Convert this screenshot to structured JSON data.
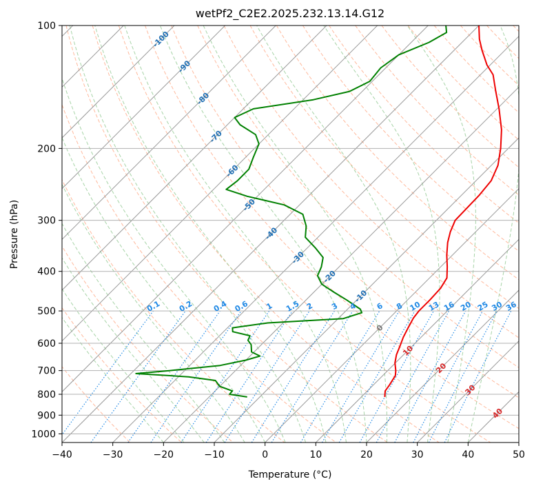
{
  "chart_data": {
    "type": "skew-t",
    "title": "wetPf2_C2E2.2025.232.13.14.G12",
    "xlabel": "Temperature (°C)",
    "ylabel": "Pressure (hPa)",
    "xlim": [
      -40,
      50
    ],
    "ylim": [
      1050,
      100
    ],
    "y_scale": "log",
    "grid": true,
    "x_ticks": [
      -40,
      -30,
      -20,
      -10,
      0,
      10,
      20,
      30,
      40,
      50
    ],
    "y_ticks": [
      100,
      200,
      300,
      400,
      500,
      600,
      700,
      800,
      900,
      1000
    ],
    "colors": {
      "temperature": "#ee0000",
      "dewpoint": "#008000",
      "isotherm": "#999999",
      "dry_adiabat": "#ffa07a",
      "moist_adiabat": "#90c890",
      "mixing_ratio": "#1e88e5",
      "isotherm_label": "#1f6fb4",
      "warm_label": "#d62728"
    },
    "series": [
      {
        "name": "Temperature",
        "points": [
          {
            "p": 812,
            "t": 14.6
          },
          {
            "p": 785,
            "t": 13.5
          },
          {
            "p": 760,
            "t": 13.2
          },
          {
            "p": 720,
            "t": 12.5
          },
          {
            "p": 700,
            "t": 11.6
          },
          {
            "p": 670,
            "t": 9.9
          },
          {
            "p": 640,
            "t": 8.6
          },
          {
            "p": 610,
            "t": 7.6
          },
          {
            "p": 580,
            "t": 6.5
          },
          {
            "p": 550,
            "t": 5.6
          },
          {
            "p": 520,
            "t": 4.7
          },
          {
            "p": 500,
            "t": 4.4
          },
          {
            "p": 470,
            "t": 4.4
          },
          {
            "p": 440,
            "t": 4.2
          },
          {
            "p": 415,
            "t": 3.4
          },
          {
            "p": 390,
            "t": 1.3
          },
          {
            "p": 365,
            "t": -1.1
          },
          {
            "p": 340,
            "t": -3.4
          },
          {
            "p": 320,
            "t": -5.0
          },
          {
            "p": 300,
            "t": -6.3
          },
          {
            "p": 280,
            "t": -6.4
          },
          {
            "p": 260,
            "t": -6.5
          },
          {
            "p": 240,
            "t": -7.0
          },
          {
            "p": 220,
            "t": -8.7
          },
          {
            "p": 200,
            "t": -11.5
          },
          {
            "p": 180,
            "t": -15.0
          },
          {
            "p": 160,
            "t": -19.6
          },
          {
            "p": 145,
            "t": -23.7
          },
          {
            "p": 132,
            "t": -27.5
          },
          {
            "p": 125,
            "t": -30.6
          },
          {
            "p": 115,
            "t": -34.5
          },
          {
            "p": 108,
            "t": -37.2
          },
          {
            "p": 100,
            "t": -40.0
          }
        ]
      },
      {
        "name": "Dewpoint",
        "points": [
          {
            "p": 812,
            "t": -12.5
          },
          {
            "p": 800,
            "t": -16.5
          },
          {
            "p": 785,
            "t": -16.6
          },
          {
            "p": 765,
            "t": -20.0
          },
          {
            "p": 740,
            "t": -22.0
          },
          {
            "p": 725,
            "t": -28.0
          },
          {
            "p": 712,
            "t": -39.0
          },
          {
            "p": 700,
            "t": -33.0
          },
          {
            "p": 680,
            "t": -24.0
          },
          {
            "p": 660,
            "t": -20.0
          },
          {
            "p": 645,
            "t": -18.0
          },
          {
            "p": 630,
            "t": -20.5
          },
          {
            "p": 605,
            "t": -22.0
          },
          {
            "p": 590,
            "t": -23.5
          },
          {
            "p": 575,
            "t": -24.0
          },
          {
            "p": 562,
            "t": -28.2
          },
          {
            "p": 550,
            "t": -29.0
          },
          {
            "p": 535,
            "t": -23.0
          },
          {
            "p": 522,
            "t": -9.0
          },
          {
            "p": 505,
            "t": -6.5
          },
          {
            "p": 495,
            "t": -7.5
          },
          {
            "p": 470,
            "t": -12.0
          },
          {
            "p": 450,
            "t": -16.0
          },
          {
            "p": 430,
            "t": -20.0
          },
          {
            "p": 410,
            "t": -22.5
          },
          {
            "p": 390,
            "t": -23.5
          },
          {
            "p": 370,
            "t": -25.0
          },
          {
            "p": 350,
            "t": -28.5
          },
          {
            "p": 330,
            "t": -32.5
          },
          {
            "p": 310,
            "t": -34.5
          },
          {
            "p": 290,
            "t": -37.5
          },
          {
            "p": 275,
            "t": -43.0
          },
          {
            "p": 262,
            "t": -52.0
          },
          {
            "p": 252,
            "t": -57.5
          },
          {
            "p": 240,
            "t": -57.0
          },
          {
            "p": 225,
            "t": -57.0
          },
          {
            "p": 210,
            "t": -58.5
          },
          {
            "p": 195,
            "t": -60.0
          },
          {
            "p": 185,
            "t": -62.5
          },
          {
            "p": 175,
            "t": -67.5
          },
          {
            "p": 168,
            "t": -70.0
          },
          {
            "p": 160,
            "t": -68.0
          },
          {
            "p": 152,
            "t": -58.0
          },
          {
            "p": 145,
            "t": -52.5
          },
          {
            "p": 137,
            "t": -50.5
          },
          {
            "p": 127,
            "t": -51.0
          },
          {
            "p": 118,
            "t": -50.0
          },
          {
            "p": 110,
            "t": -46.5
          },
          {
            "p": 104,
            "t": -45.0
          },
          {
            "p": 100,
            "t": -46.5
          }
        ]
      }
    ],
    "isotherm_labels": [
      -100,
      -90,
      -80,
      -70,
      -60,
      -50,
      -40,
      -30,
      -20,
      -10,
      0,
      10,
      20,
      30,
      40
    ],
    "mixing_ratio_labels": [
      "0.1",
      "0.2",
      "0.4",
      "0.6",
      "1",
      "1.5",
      "2",
      "3",
      "4",
      "6",
      "8",
      "10",
      "13",
      "16",
      "20",
      "25",
      "30",
      "36"
    ],
    "mixing_ratio_values": [
      0.1,
      0.2,
      0.4,
      0.6,
      1,
      1.5,
      2,
      3,
      4,
      6,
      8,
      10,
      13,
      16,
      20,
      25,
      30,
      36
    ]
  }
}
